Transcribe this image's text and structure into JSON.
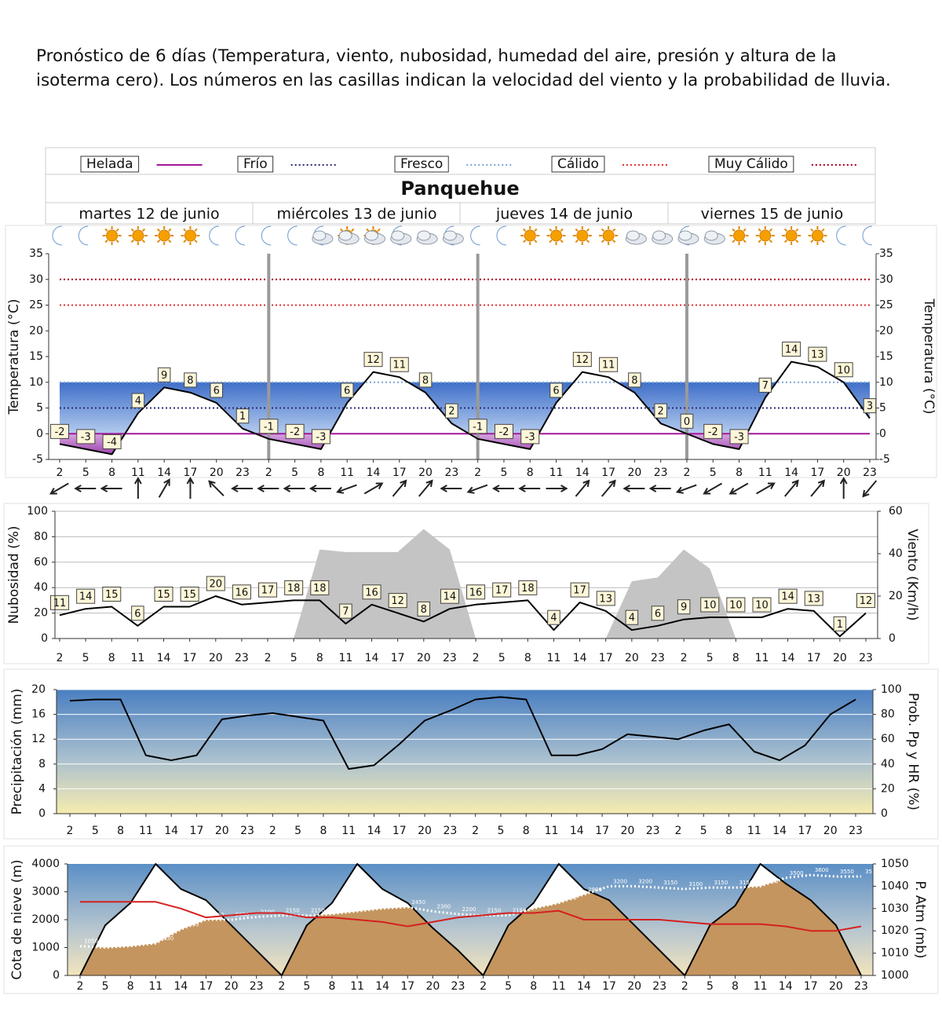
{
  "intro": "Pronóstico de 6 días (Temperatura, viento, nubosidad, humedad del aire, presión y altura de la isoterma cero). Los números en las casillas indican la velocidad del viento y la probabilidad de lluvia.",
  "title": "Panquehue",
  "days": [
    "martes 12 de junio",
    "miércoles 13 de junio",
    "jueves 14 de junio",
    "viernes 15 de junio"
  ],
  "chart_data": [
    {
      "type": "line",
      "y_label": "Temperatura (°C)",
      "y2_label": "Temperatura (°C)",
      "categories": [
        2,
        5,
        8,
        11,
        14,
        17,
        20,
        23,
        2,
        5,
        8,
        11,
        14,
        17,
        20,
        23,
        2,
        5,
        8,
        11,
        14,
        17,
        20,
        23,
        2,
        5,
        8,
        11,
        14,
        17,
        20,
        23
      ],
      "series": [
        {
          "color": "#000000",
          "style": "line",
          "labels": "box",
          "values": [
            -2,
            -3,
            -4,
            4,
            9,
            8,
            6,
            1,
            -1,
            -2,
            -3,
            6,
            12,
            11,
            8,
            2,
            -1,
            -2,
            -3,
            6,
            12,
            11,
            8,
            2,
            0,
            -2,
            -3,
            7,
            14,
            13,
            10,
            3
          ]
        }
      ],
      "thresholds": [
        {
          "name": "Helada",
          "value": 0,
          "color": "#a3199c",
          "dash": "solid"
        },
        {
          "name": "Frío",
          "value": 5,
          "color": "#2a2a7a",
          "dash": "dotted"
        },
        {
          "name": "Fresco",
          "value": 10,
          "color": "#7da7d9",
          "dash": "dotted"
        },
        {
          "name": "Cálido",
          "value": 25,
          "color": "#e03030",
          "dash": "dotted"
        },
        {
          "name": "Muy Cálido",
          "value": 30,
          "color": "#b00020",
          "dash": "dotted"
        }
      ],
      "wind_direction": [
        240,
        270,
        270,
        0,
        30,
        0,
        315,
        270,
        270,
        270,
        270,
        250,
        60,
        40,
        40,
        270,
        250,
        270,
        270,
        90,
        40,
        40,
        270,
        270,
        250,
        240,
        240,
        60,
        40,
        40,
        0,
        220
      ],
      "ylim": [
        -5,
        35
      ],
      "yticks": [
        -5,
        0,
        5,
        10,
        15,
        20,
        25,
        30,
        35
      ],
      "y2lim": [
        -5,
        35
      ],
      "y2ticks": [
        -5,
        0,
        5,
        10,
        15,
        20,
        25,
        30,
        35
      ],
      "grid": false
    },
    {
      "type": "line",
      "y_label": "Nubosidad (%)",
      "y2_label": "Viento (Km/h)",
      "categories": [
        2,
        5,
        8,
        11,
        14,
        17,
        20,
        23,
        2,
        5,
        8,
        11,
        14,
        17,
        20,
        23,
        2,
        5,
        8,
        11,
        14,
        17,
        20,
        23,
        2,
        5,
        8,
        11,
        14,
        17,
        20,
        23
      ],
      "series": [
        {
          "color": "#c4c4c4",
          "fill": "#c4c4c4",
          "style": "area",
          "values": [
            0,
            0,
            0,
            0,
            0,
            0,
            0,
            0,
            0,
            0,
            70,
            68,
            68,
            68,
            86,
            70,
            0,
            0,
            0,
            0,
            0,
            0,
            45,
            48,
            70,
            55,
            0,
            0,
            0,
            0,
            0,
            0
          ]
        },
        {
          "color": "#000000",
          "style": "line",
          "labels": "box",
          "axis": "y2",
          "values": [
            11,
            14,
            15,
            6,
            15,
            15,
            20,
            16,
            17,
            18,
            18,
            7,
            16,
            12,
            8,
            14,
            16,
            17,
            18,
            4,
            17,
            13,
            4,
            6,
            9,
            10,
            10,
            10,
            14,
            13,
            1,
            12
          ]
        }
      ],
      "ylim": [
        0,
        100
      ],
      "yticks": [
        0,
        20,
        40,
        60,
        80,
        100
      ],
      "y2lim": [
        0,
        60
      ],
      "y2ticks": [
        0,
        20,
        40,
        60
      ],
      "grid": true
    },
    {
      "type": "line",
      "y_label": "Precipitación (mm)",
      "y2_label": "Prob. Pp y HR (%)",
      "categories": [
        2,
        5,
        8,
        11,
        14,
        17,
        20,
        23,
        2,
        5,
        8,
        11,
        14,
        17,
        20,
        23,
        2,
        5,
        8,
        11,
        14,
        17,
        20,
        23,
        2,
        5,
        8,
        11,
        14,
        17,
        20,
        23
      ],
      "series": [
        {
          "color": "#000000",
          "style": "line",
          "axis": "y2",
          "values": [
            91,
            92,
            92,
            47,
            43,
            47,
            76,
            79,
            81,
            78,
            75,
            36,
            39,
            56,
            75,
            83,
            92,
            94,
            92,
            47,
            47,
            52,
            64,
            62,
            60,
            67,
            72,
            50,
            43,
            55,
            80,
            92
          ]
        }
      ],
      "ylim": [
        0,
        20
      ],
      "yticks": [
        0,
        4,
        8,
        12,
        16,
        20
      ],
      "y2lim": [
        0,
        100
      ],
      "y2ticks": [
        0,
        20,
        40,
        60,
        80,
        100
      ],
      "grid": true
    },
    {
      "type": "line",
      "y_label": "Cota de nieve (m)",
      "y2_label": "P. Atm (mb)",
      "categories": [
        2,
        5,
        8,
        11,
        14,
        17,
        20,
        23,
        2,
        5,
        8,
        11,
        14,
        17,
        20,
        23,
        2,
        5,
        8,
        11,
        14,
        17,
        20,
        23,
        2,
        5,
        8,
        11,
        14,
        17,
        20,
        23
      ],
      "series": [
        {
          "color": "#000000",
          "fill": "#ffffff",
          "style": "area",
          "values": [
            0,
            1800,
            2600,
            4000,
            3100,
            2700,
            1800,
            900,
            0,
            1800,
            2600,
            4000,
            3100,
            2600,
            1700,
            900,
            0,
            1800,
            2600,
            4000,
            3100,
            2700,
            1800,
            900,
            0,
            1800,
            2500,
            4000,
            3300,
            2700,
            1800,
            0
          ]
        },
        {
          "color": "#ffffff",
          "fill": "#c4955e",
          "style": "area",
          "dash": "dotted",
          "labels": "text",
          "values": [
            1050,
            1000,
            1050,
            1150,
            1650,
            2000,
            2000,
            2100,
            2150,
            2150,
            2200,
            2300,
            2400,
            2450,
            2300,
            2200,
            2150,
            2150,
            2400,
            2600,
            2900,
            3200,
            3200,
            3150,
            3100,
            3150,
            3150,
            3200,
            3500,
            3600,
            3550,
            3550
          ]
        },
        {
          "color": "#d42020",
          "style": "line",
          "axis": "y2",
          "values": [
            1033,
            1033,
            1033,
            1033,
            1030,
            1026,
            1027,
            1028,
            1028,
            1026,
            1026,
            1025,
            1024,
            1022,
            1024,
            1026,
            1027,
            1028,
            1028,
            1029,
            1025,
            1025,
            1025,
            1025,
            1024,
            1023,
            1023,
            1023,
            1022,
            1020,
            1020,
            1022
          ]
        }
      ],
      "ylim": [
        0,
        4000
      ],
      "yticks": [
        0,
        1000,
        2000,
        3000,
        4000
      ],
      "y2lim": [
        1000,
        1050
      ],
      "y2ticks": [
        1000,
        1010,
        1020,
        1030,
        1040,
        1050
      ],
      "grid": false
    }
  ]
}
